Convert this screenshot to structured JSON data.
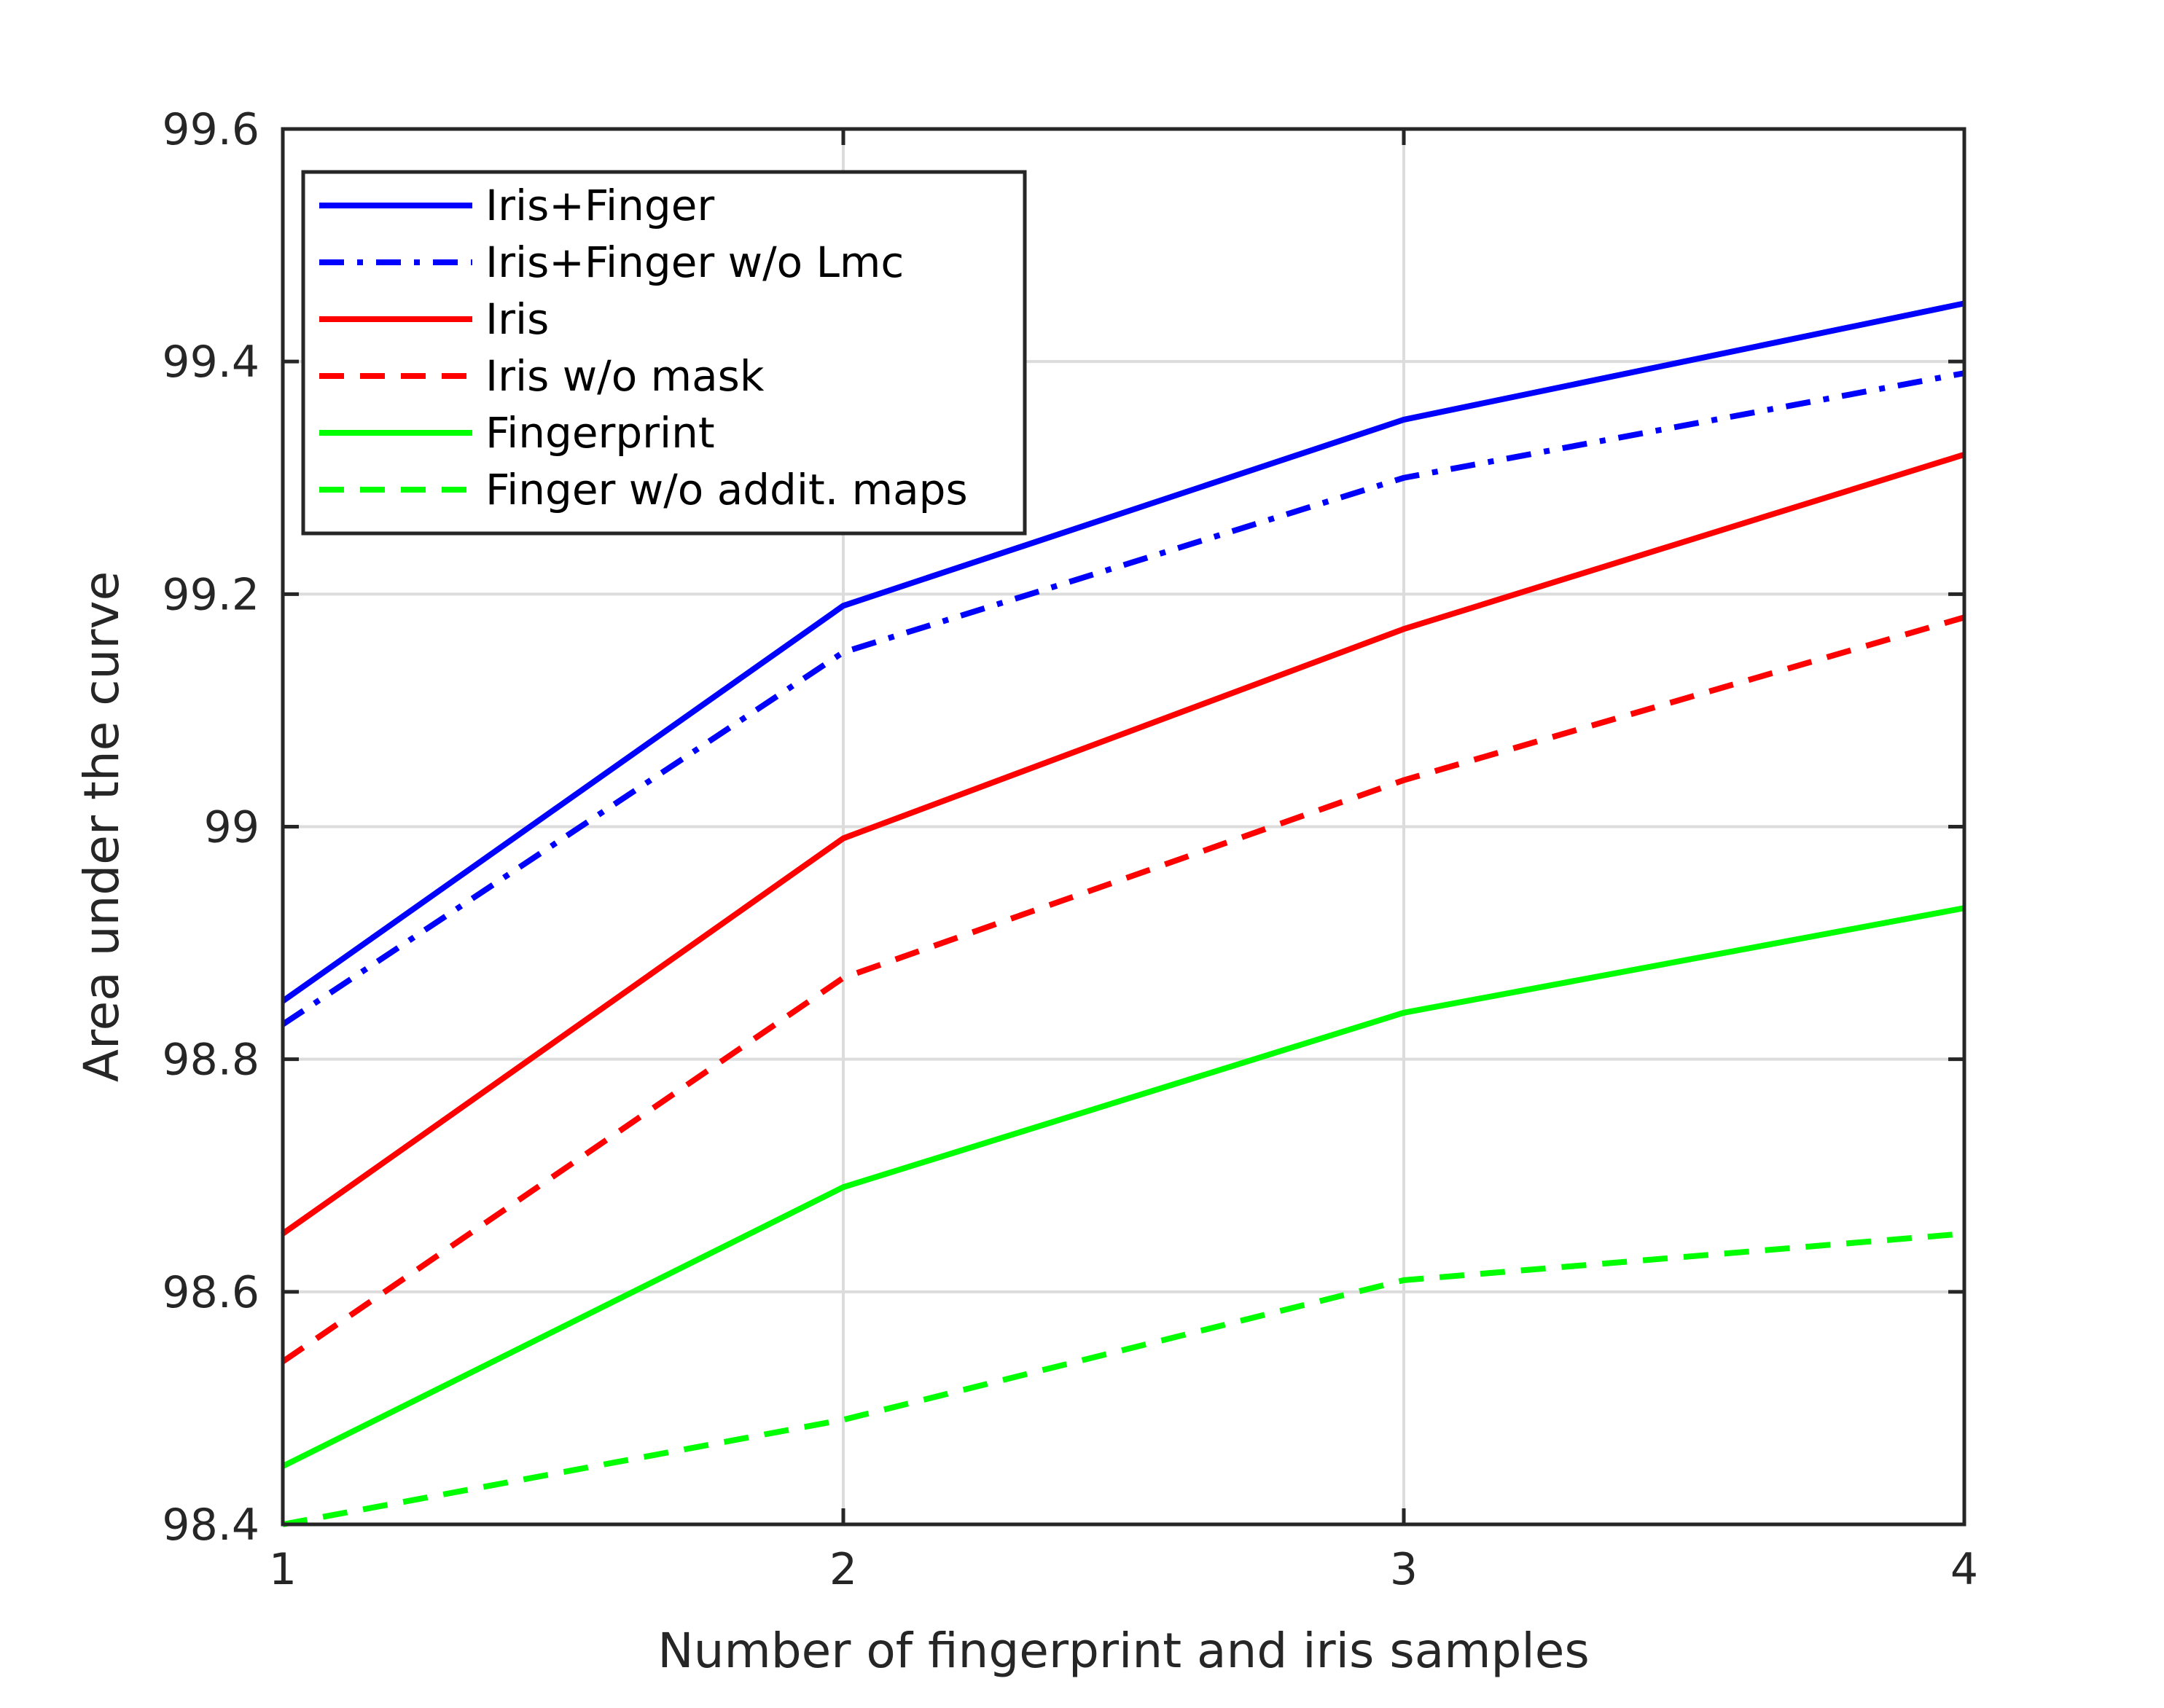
{
  "chart_data": {
    "type": "line",
    "title": "",
    "xlabel": "Number of fingerprint and iris samples",
    "ylabel": "Area under the curve",
    "xlim": [
      1,
      4
    ],
    "ylim": [
      98.4,
      99.6
    ],
    "x_ticks": [
      1,
      2,
      3,
      4
    ],
    "x_tick_labels": [
      "1",
      "2",
      "3",
      "4"
    ],
    "y_ticks": [
      98.4,
      98.6,
      98.8,
      99.0,
      99.2,
      99.4,
      99.6
    ],
    "y_tick_labels": [
      "98.4",
      "98.6",
      "98.8",
      "99",
      "99.2",
      "99.4",
      "99.6"
    ],
    "grid": true,
    "legend_position": "top-left",
    "x": [
      1,
      2,
      3,
      4
    ],
    "series": [
      {
        "name": "Iris+Finger",
        "color": "#0000ff",
        "style": "solid",
        "values": [
          98.85,
          99.19,
          99.35,
          99.45
        ]
      },
      {
        "name": "Iris+Finger w/o Lmc",
        "color": "#0000ff",
        "style": "dashdot",
        "values": [
          98.83,
          99.15,
          99.3,
          99.39
        ]
      },
      {
        "name": "Iris",
        "color": "#ff0000",
        "style": "solid",
        "values": [
          98.65,
          98.99,
          99.17,
          99.32
        ]
      },
      {
        "name": "Iris w/o mask",
        "color": "#ff0000",
        "style": "dashed",
        "values": [
          98.54,
          98.87,
          99.04,
          99.18
        ]
      },
      {
        "name": "Fingerprint",
        "color": "#00ff00",
        "style": "solid",
        "values": [
          98.45,
          98.69,
          98.84,
          98.93
        ]
      },
      {
        "name": "Finger w/o addit. maps",
        "color": "#00ff00",
        "style": "dashed",
        "values": [
          98.4,
          98.49,
          98.61,
          98.65
        ]
      }
    ]
  }
}
